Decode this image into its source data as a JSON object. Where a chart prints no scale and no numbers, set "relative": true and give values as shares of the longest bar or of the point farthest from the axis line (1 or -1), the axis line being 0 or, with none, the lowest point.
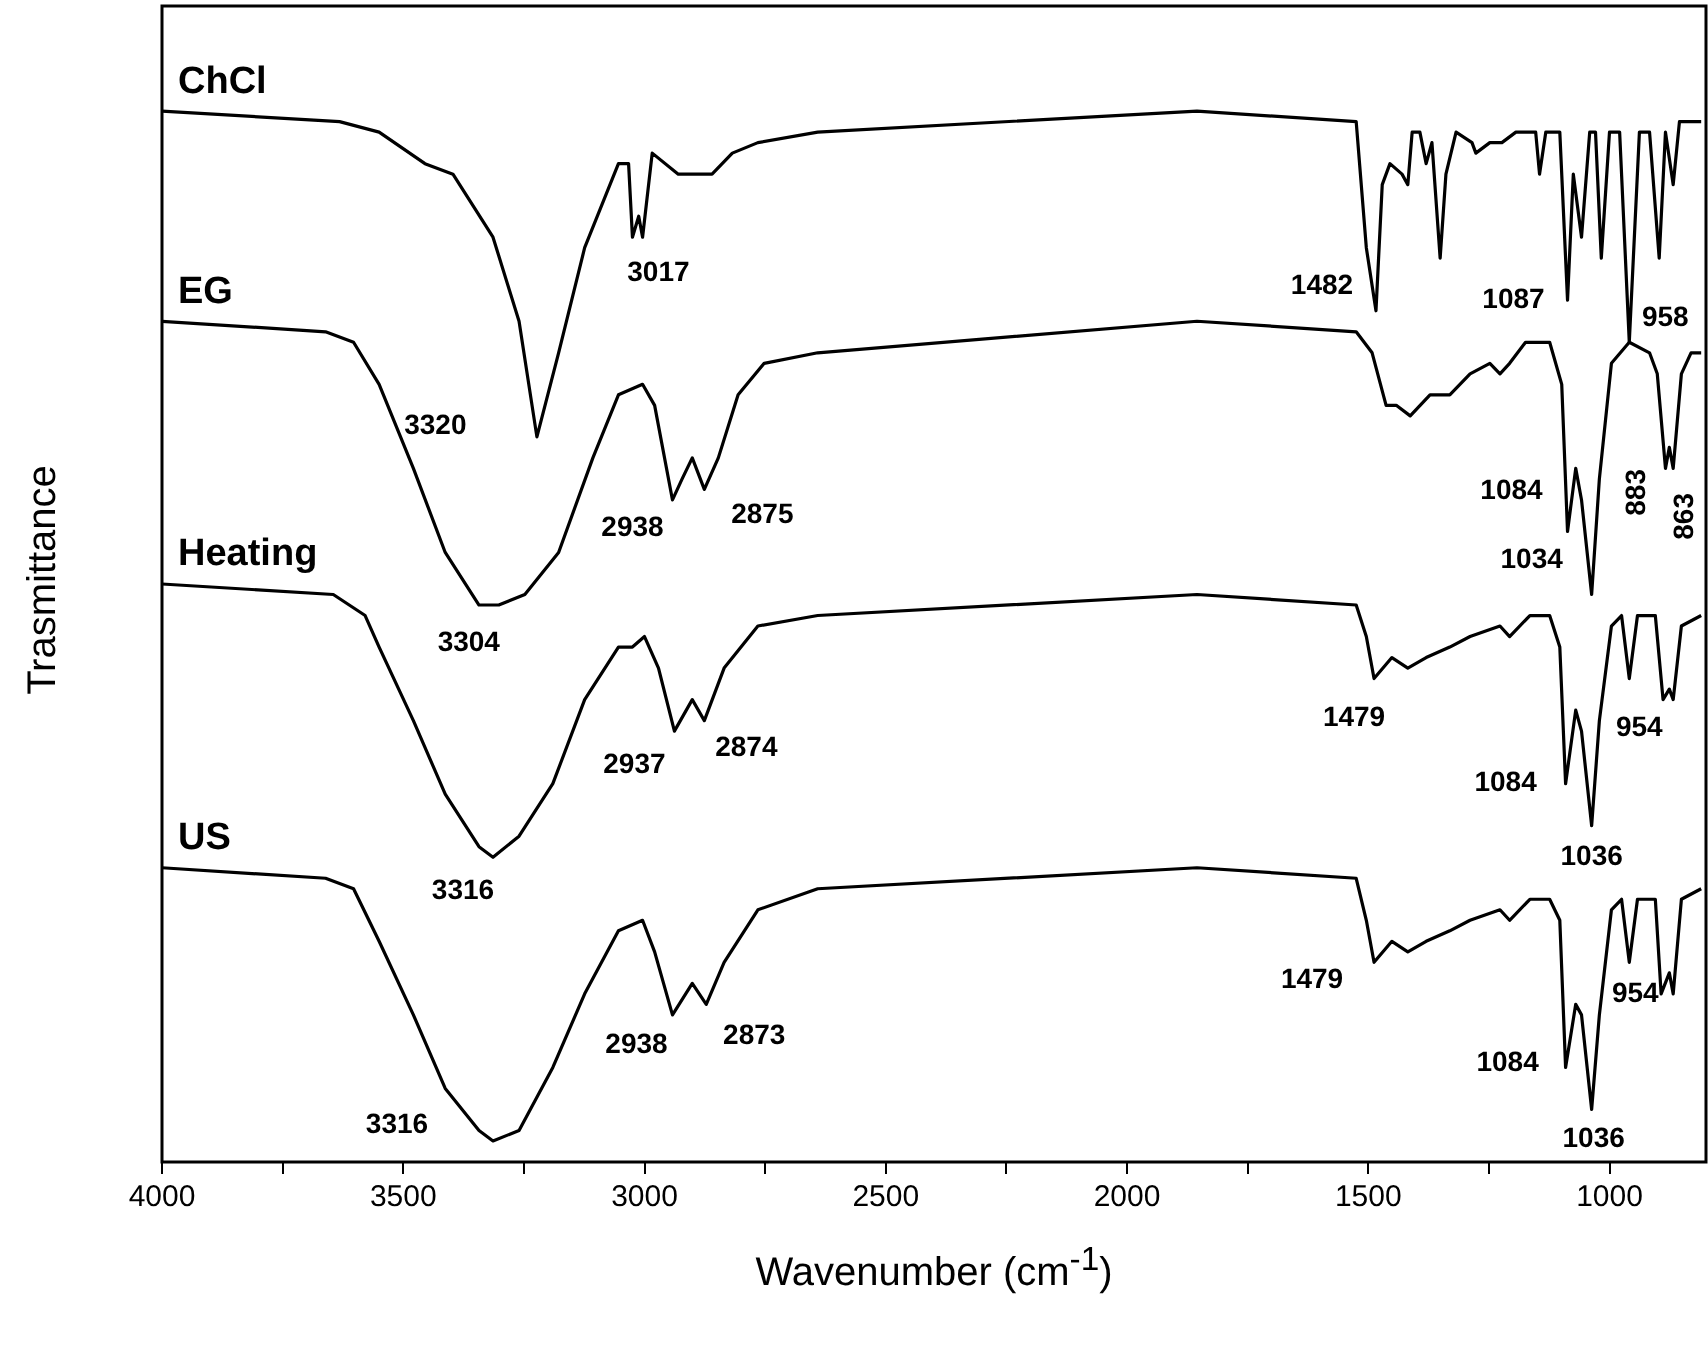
{
  "chart_data": {
    "type": "line",
    "relative": true,
    "xlabel": "Wavenumber (cm$^{-1}$)",
    "ylabel": "Trasmittance",
    "xlim": [
      4000,
      800
    ],
    "xticks": [
      4000,
      {
        "value": 3750,
        "label": null
      },
      3500,
      {
        "value": 3250,
        "label": null
      },
      3000,
      {
        "value": 2750,
        "label": null
      },
      2500,
      {
        "value": 2250,
        "label": null
      },
      2000,
      {
        "value": 1750,
        "label": null
      },
      1500,
      {
        "value": 1250,
        "label": null
      },
      1000
    ],
    "marker": "none",
    "line_style": "solid",
    "series": [
      {
        "name": "ChCl",
        "color": "#000000",
        "x": [
          4000,
          3632,
          3550,
          3455,
          3397,
          3314,
          3260,
          3223,
          3178,
          3124,
          3054,
          3033,
          3025,
          3012,
          3004,
          2984,
          2930,
          2860,
          2818,
          2765,
          2641,
          1855,
          1525,
          1504,
          1484,
          1471,
          1455,
          1430,
          1418,
          1409,
          1393,
          1380,
          1368,
          1351,
          1339,
          1318,
          1285,
          1277,
          1248,
          1223,
          1194,
          1153,
          1145,
          1132,
          1103,
          1087,
          1075,
          1058,
          1041,
          1029,
          1017,
          1000,
          979,
          959,
          938,
          917,
          897,
          884,
          868,
          855,
          810
        ],
        "values": [
          1.0,
          0.99,
          0.98,
          0.95,
          0.94,
          0.88,
          0.8,
          0.69,
          0.77,
          0.87,
          0.95,
          0.95,
          0.88,
          0.9,
          0.88,
          0.96,
          0.94,
          0.94,
          0.96,
          0.97,
          0.98,
          1.0,
          0.99,
          0.87,
          0.81,
          0.93,
          0.95,
          0.94,
          0.93,
          0.98,
          0.98,
          0.95,
          0.97,
          0.86,
          0.94,
          0.98,
          0.97,
          0.96,
          0.97,
          0.97,
          0.98,
          0.98,
          0.94,
          0.98,
          0.98,
          0.82,
          0.94,
          0.88,
          0.98,
          0.98,
          0.86,
          0.98,
          0.98,
          0.78,
          0.98,
          0.98,
          0.86,
          0.98,
          0.93,
          0.99,
          0.99
        ]
      },
      {
        "name": "EG",
        "color": "#000000",
        "x": [
          4000,
          3661,
          3603,
          3550,
          3479,
          3413,
          3343,
          3302,
          3248,
          3178,
          3107,
          3054,
          3004,
          2979,
          2942,
          2922,
          2901,
          2876,
          2847,
          2806,
          2752,
          2641,
          1855,
          1525,
          1492,
          1463,
          1442,
          1413,
          1372,
          1331,
          1289,
          1248,
          1227,
          1207,
          1174,
          1124,
          1099,
          1087,
          1070,
          1058,
          1037,
          1021,
          996,
          959,
          917,
          901,
          884,
          876,
          868,
          851,
          831,
          810
        ],
        "values": [
          0.8,
          0.79,
          0.78,
          0.74,
          0.66,
          0.58,
          0.53,
          0.53,
          0.54,
          0.58,
          0.67,
          0.73,
          0.74,
          0.72,
          0.63,
          0.65,
          0.67,
          0.64,
          0.67,
          0.73,
          0.76,
          0.77,
          0.8,
          0.79,
          0.77,
          0.72,
          0.72,
          0.71,
          0.73,
          0.73,
          0.75,
          0.76,
          0.75,
          0.76,
          0.78,
          0.78,
          0.74,
          0.6,
          0.66,
          0.63,
          0.54,
          0.65,
          0.76,
          0.78,
          0.77,
          0.75,
          0.66,
          0.68,
          0.66,
          0.75,
          0.77,
          0.77
        ]
      },
      {
        "name": "Heating",
        "color": "#000000",
        "x": [
          4000,
          3645,
          3579,
          3550,
          3479,
          3413,
          3343,
          3314,
          3260,
          3190,
          3124,
          3054,
          3025,
          3000,
          2971,
          2938,
          2901,
          2876,
          2835,
          2765,
          2641,
          1855,
          1525,
          1504,
          1488,
          1451,
          1418,
          1380,
          1331,
          1289,
          1227,
          1207,
          1165,
          1124,
          1103,
          1091,
          1070,
          1058,
          1037,
          1021,
          996,
          975,
          959,
          942,
          905,
          889,
          876,
          868,
          851,
          810
        ],
        "values": [
          0.55,
          0.54,
          0.52,
          0.49,
          0.42,
          0.35,
          0.3,
          0.29,
          0.31,
          0.36,
          0.44,
          0.49,
          0.49,
          0.5,
          0.47,
          0.41,
          0.44,
          0.42,
          0.47,
          0.51,
          0.52,
          0.54,
          0.53,
          0.5,
          0.46,
          0.48,
          0.47,
          0.48,
          0.49,
          0.5,
          0.51,
          0.5,
          0.52,
          0.52,
          0.49,
          0.36,
          0.43,
          0.41,
          0.32,
          0.42,
          0.51,
          0.52,
          0.46,
          0.52,
          0.52,
          0.44,
          0.45,
          0.44,
          0.51,
          0.52
        ]
      },
      {
        "name": "US",
        "color": "#000000",
        "x": [
          4000,
          3661,
          3603,
          3550,
          3479,
          3413,
          3343,
          3314,
          3260,
          3190,
          3124,
          3054,
          3004,
          2979,
          2942,
          2901,
          2872,
          2835,
          2765,
          2641,
          1855,
          1525,
          1504,
          1488,
          1451,
          1418,
          1380,
          1331,
          1289,
          1227,
          1207,
          1165,
          1124,
          1103,
          1091,
          1070,
          1058,
          1037,
          1021,
          996,
          975,
          959,
          942,
          905,
          893,
          876,
          868,
          851,
          810
        ],
        "values": [
          0.28,
          0.27,
          0.26,
          0.21,
          0.14,
          0.07,
          0.03,
          0.02,
          0.03,
          0.09,
          0.16,
          0.22,
          0.23,
          0.2,
          0.14,
          0.17,
          0.15,
          0.19,
          0.24,
          0.26,
          0.28,
          0.27,
          0.23,
          0.19,
          0.21,
          0.2,
          0.21,
          0.22,
          0.23,
          0.24,
          0.23,
          0.25,
          0.25,
          0.23,
          0.09,
          0.15,
          0.14,
          0.05,
          0.14,
          0.24,
          0.25,
          0.19,
          0.25,
          0.25,
          0.16,
          0.18,
          0.16,
          0.25,
          0.26
        ]
      }
    ],
    "annotations": [
      {
        "text": "3017",
        "x": 3025,
        "y": 0.88
      },
      {
        "text": "1482",
        "x": 1484,
        "y": 0.81
      },
      {
        "text": "1087",
        "x": 1087,
        "y": 0.82
      },
      {
        "text": "958",
        "x": 959,
        "y": 0.78
      },
      {
        "text": "3320",
        "x": 3479,
        "y": 0.66
      },
      {
        "text": "2938",
        "x": 2942,
        "y": 0.63
      },
      {
        "text": "2875",
        "x": 2876,
        "y": 0.64
      },
      {
        "text": "3304",
        "x": 3302,
        "y": 0.53
      },
      {
        "text": "1084",
        "x": 1087,
        "y": 0.6
      },
      {
        "text": "1034",
        "x": 1037,
        "y": 0.54
      },
      {
        "text": "883",
        "x": 884,
        "y": 0.66
      },
      {
        "text": "863",
        "x": 868,
        "y": 0.66
      },
      {
        "text": "2937",
        "x": 2938,
        "y": 0.41
      },
      {
        "text": "2874",
        "x": 2876,
        "y": 0.42
      },
      {
        "text": "3316",
        "x": 3314,
        "y": 0.29
      },
      {
        "text": "1479",
        "x": 1488,
        "y": 0.46
      },
      {
        "text": "1084",
        "x": 1091,
        "y": 0.36
      },
      {
        "text": "1036",
        "x": 1037,
        "y": 0.32
      },
      {
        "text": "954",
        "x": 959,
        "y": 0.46
      },
      {
        "text": "2938",
        "x": 2942,
        "y": 0.14
      },
      {
        "text": "2873",
        "x": 2872,
        "y": 0.15
      },
      {
        "text": "3316",
        "x": 3314,
        "y": 0.02
      },
      {
        "text": "1479",
        "x": 1488,
        "y": 0.19
      },
      {
        "text": "1084",
        "x": 1091,
        "y": 0.09
      },
      {
        "text": "1036",
        "x": 1037,
        "y": 0.05
      },
      {
        "text": "954",
        "x": 959,
        "y": 0.19
      }
    ]
  }
}
